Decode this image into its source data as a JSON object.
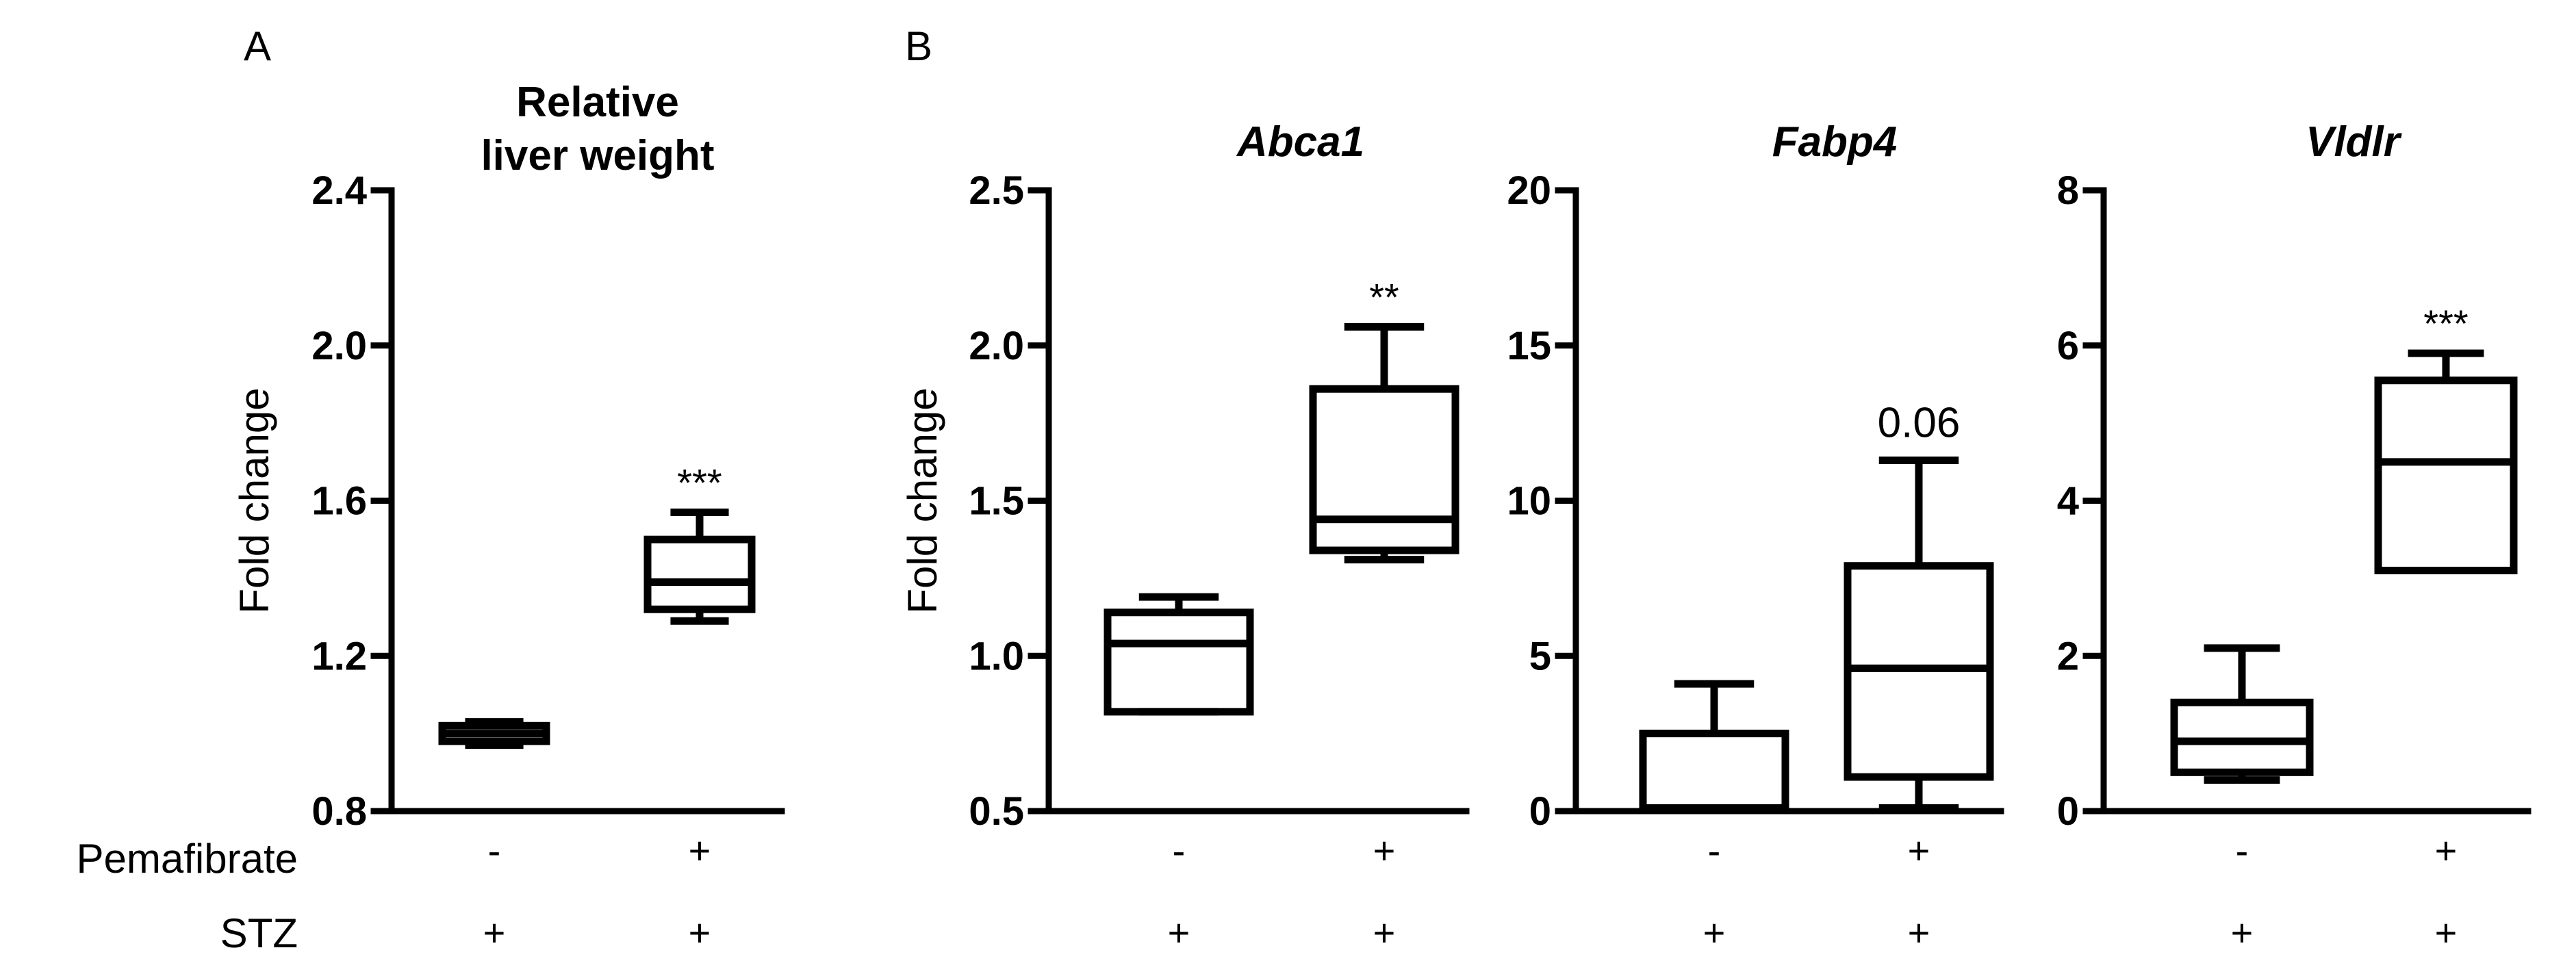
{
  "panel_labels": [
    "A",
    "B"
  ],
  "factors": {
    "row1_label": "Pemafibrate",
    "row2_label": "STZ",
    "row1_values": [
      "-",
      "+"
    ],
    "row2_values": [
      "+",
      "+"
    ]
  },
  "chart_data": [
    {
      "type": "box",
      "panel": "A",
      "title": "Relative\nliver weight",
      "title_italic": false,
      "ylabel": "Fold change",
      "ylim": [
        0.8,
        2.4
      ],
      "yticks": [
        0.8,
        1.2,
        1.6,
        2.0,
        2.4
      ],
      "tick_labels": [
        "0.8",
        "1.2",
        "1.6",
        "2.0",
        "2.4"
      ],
      "categories": [
        "Pemafibrate - / STZ +",
        "Pemafibrate + / STZ +"
      ],
      "boxes": [
        {
          "min": 0.97,
          "q1": 0.98,
          "median": 1.0,
          "q3": 1.02,
          "max": 1.03,
          "annotation": ""
        },
        {
          "min": 1.29,
          "q1": 1.32,
          "median": 1.39,
          "q3": 1.5,
          "max": 1.57,
          "annotation": "***"
        }
      ]
    },
    {
      "type": "box",
      "panel": "B",
      "title": "Abca1",
      "title_italic": true,
      "ylabel": "Fold change",
      "ylim": [
        0.5,
        2.5
      ],
      "yticks": [
        0.5,
        1.0,
        1.5,
        2.0,
        2.5
      ],
      "tick_labels": [
        "0.5",
        "1.0",
        "1.5",
        "2.0",
        "2.5"
      ],
      "categories": [
        "Pemafibrate - / STZ +",
        "Pemafibrate + / STZ +"
      ],
      "boxes": [
        {
          "min": 0.82,
          "q1": 0.82,
          "median": 1.04,
          "q3": 1.14,
          "max": 1.19,
          "annotation": ""
        },
        {
          "min": 1.31,
          "q1": 1.34,
          "median": 1.44,
          "q3": 1.86,
          "max": 2.06,
          "annotation": "**"
        }
      ]
    },
    {
      "type": "box",
      "panel": "B",
      "title": "Fabp4",
      "title_italic": true,
      "ylabel": "",
      "ylim": [
        0,
        20
      ],
      "yticks": [
        0,
        5,
        10,
        15,
        20
      ],
      "tick_labels": [
        "0",
        "5",
        "10",
        "15",
        "20"
      ],
      "categories": [
        "Pemafibrate - / STZ +",
        "Pemafibrate + / STZ +"
      ],
      "boxes": [
        {
          "min": 0.1,
          "q1": 0.1,
          "median": 0.1,
          "q3": 2.5,
          "max": 4.1,
          "annotation": ""
        },
        {
          "min": 0.1,
          "q1": 1.1,
          "median": 4.6,
          "q3": 7.9,
          "max": 11.3,
          "annotation": "0.06"
        }
      ]
    },
    {
      "type": "box",
      "panel": "B",
      "title": "Vldlr",
      "title_italic": true,
      "ylabel": "",
      "ylim": [
        0,
        8
      ],
      "yticks": [
        0,
        2,
        4,
        6,
        8
      ],
      "tick_labels": [
        "0",
        "2",
        "4",
        "6",
        "8"
      ],
      "categories": [
        "Pemafibrate - / STZ +",
        "Pemafibrate + / STZ +"
      ],
      "boxes": [
        {
          "min": 0.4,
          "q1": 0.5,
          "median": 0.9,
          "q3": 1.4,
          "max": 2.1,
          "annotation": ""
        },
        {
          "min": 3.1,
          "q1": 3.1,
          "median": 4.5,
          "q3": 5.55,
          "max": 5.9,
          "annotation": "***"
        }
      ]
    }
  ]
}
